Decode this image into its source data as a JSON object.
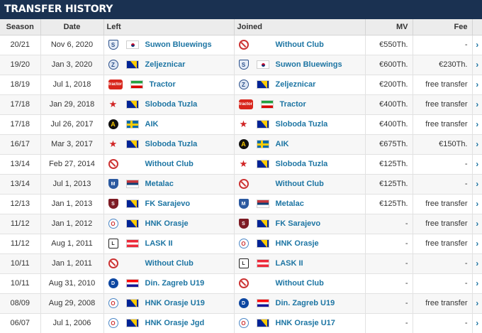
{
  "title": "TRANSFER HISTORY",
  "columns": {
    "season": "Season",
    "date": "Date",
    "left": "Left",
    "joined": "Joined",
    "mv": "MV",
    "fee": "Fee"
  },
  "rows": [
    {
      "season": "20/21",
      "date": "Nov 6, 2020",
      "left": "Suwon Bluewings",
      "left_crest": "shield",
      "left_flag": "kr",
      "joined": "Without Club",
      "joined_crest": "none",
      "joined_flag": "blank",
      "mv": "€550Th.",
      "fee": "-"
    },
    {
      "season": "19/20",
      "date": "Jan 3, 2020",
      "left": "Zeljeznicar",
      "left_crest": "round",
      "left_flag": "ba",
      "joined": "Suwon Bluewings",
      "joined_crest": "shield",
      "joined_flag": "kr",
      "mv": "€600Th.",
      "fee": "€230Th."
    },
    {
      "season": "18/19",
      "date": "Jul 1, 2018",
      "left": "Tractor",
      "left_crest": "tractor",
      "left_flag": "ir",
      "joined": "Zeljeznicar",
      "joined_crest": "round",
      "joined_flag": "ba",
      "mv": "€200Th.",
      "fee": "free transfer"
    },
    {
      "season": "17/18",
      "date": "Jan 29, 2018",
      "left": "Sloboda Tuzla",
      "left_crest": "star",
      "left_flag": "ba",
      "joined": "Tractor",
      "joined_crest": "tractor",
      "joined_flag": "ir",
      "mv": "€400Th.",
      "fee": "free transfer"
    },
    {
      "season": "17/18",
      "date": "Jul 26, 2017",
      "left": "AIK",
      "left_crest": "aik",
      "left_flag": "se",
      "joined": "Sloboda Tuzla",
      "joined_crest": "star",
      "joined_flag": "ba",
      "mv": "€400Th.",
      "fee": "free transfer"
    },
    {
      "season": "16/17",
      "date": "Mar 3, 2017",
      "left": "Sloboda Tuzla",
      "left_crest": "star",
      "left_flag": "ba",
      "joined": "AIK",
      "joined_crest": "aik",
      "joined_flag": "se",
      "mv": "€675Th.",
      "fee": "€150Th."
    },
    {
      "season": "13/14",
      "date": "Feb 27, 2014",
      "left": "Without Club",
      "left_crest": "none",
      "left_flag": "blank",
      "joined": "Sloboda Tuzla",
      "joined_crest": "star",
      "joined_flag": "ba",
      "mv": "€125Th.",
      "fee": "-"
    },
    {
      "season": "13/14",
      "date": "Jul 1, 2013",
      "left": "Metalac",
      "left_crest": "metalac",
      "left_flag": "rs",
      "joined": "Without Club",
      "joined_crest": "none",
      "joined_flag": "blank",
      "mv": "€125Th.",
      "fee": "-"
    },
    {
      "season": "12/13",
      "date": "Jan 1, 2013",
      "left": "FK Sarajevo",
      "left_crest": "fksa",
      "left_flag": "ba",
      "joined": "Metalac",
      "joined_crest": "metalac",
      "joined_flag": "rs",
      "mv": "€125Th.",
      "fee": "free transfer"
    },
    {
      "season": "11/12",
      "date": "Jan 1, 2012",
      "left": "HNK Orasje",
      "left_crest": "hnk",
      "left_flag": "ba",
      "joined": "FK Sarajevo",
      "joined_crest": "fksa",
      "joined_flag": "ba",
      "mv": "-",
      "fee": "free transfer"
    },
    {
      "season": "11/12",
      "date": "Aug 1, 2011",
      "left": "LASK II",
      "left_crest": "lask",
      "left_flag": "at",
      "joined": "HNK Orasje",
      "joined_crest": "hnk",
      "joined_flag": "ba",
      "mv": "-",
      "fee": "free transfer"
    },
    {
      "season": "10/11",
      "date": "Jan 1, 2011",
      "left": "Without Club",
      "left_crest": "none",
      "left_flag": "blank",
      "joined": "LASK II",
      "joined_crest": "lask",
      "joined_flag": "at",
      "mv": "-",
      "fee": "-"
    },
    {
      "season": "10/11",
      "date": "Aug 31, 2010",
      "left": "Din. Zagreb U19",
      "left_crest": "dinamo",
      "left_flag": "hr",
      "joined": "Without Club",
      "joined_crest": "none",
      "joined_flag": "blank",
      "mv": "-",
      "fee": "-"
    },
    {
      "season": "08/09",
      "date": "Aug 29, 2008",
      "left": "HNK Orasje U19",
      "left_crest": "hnk",
      "left_flag": "ba",
      "joined": "Din. Zagreb U19",
      "joined_crest": "dinamo",
      "joined_flag": "hr",
      "mv": "-",
      "fee": "free transfer"
    },
    {
      "season": "06/07",
      "date": "Jul 1, 2006",
      "left": "HNK Orasje Jgd",
      "left_crest": "hnk",
      "left_flag": "ba",
      "joined": "HNK Orasje U17",
      "joined_crest": "hnk",
      "joined_flag": "ba",
      "mv": "-",
      "fee": "-"
    }
  ]
}
